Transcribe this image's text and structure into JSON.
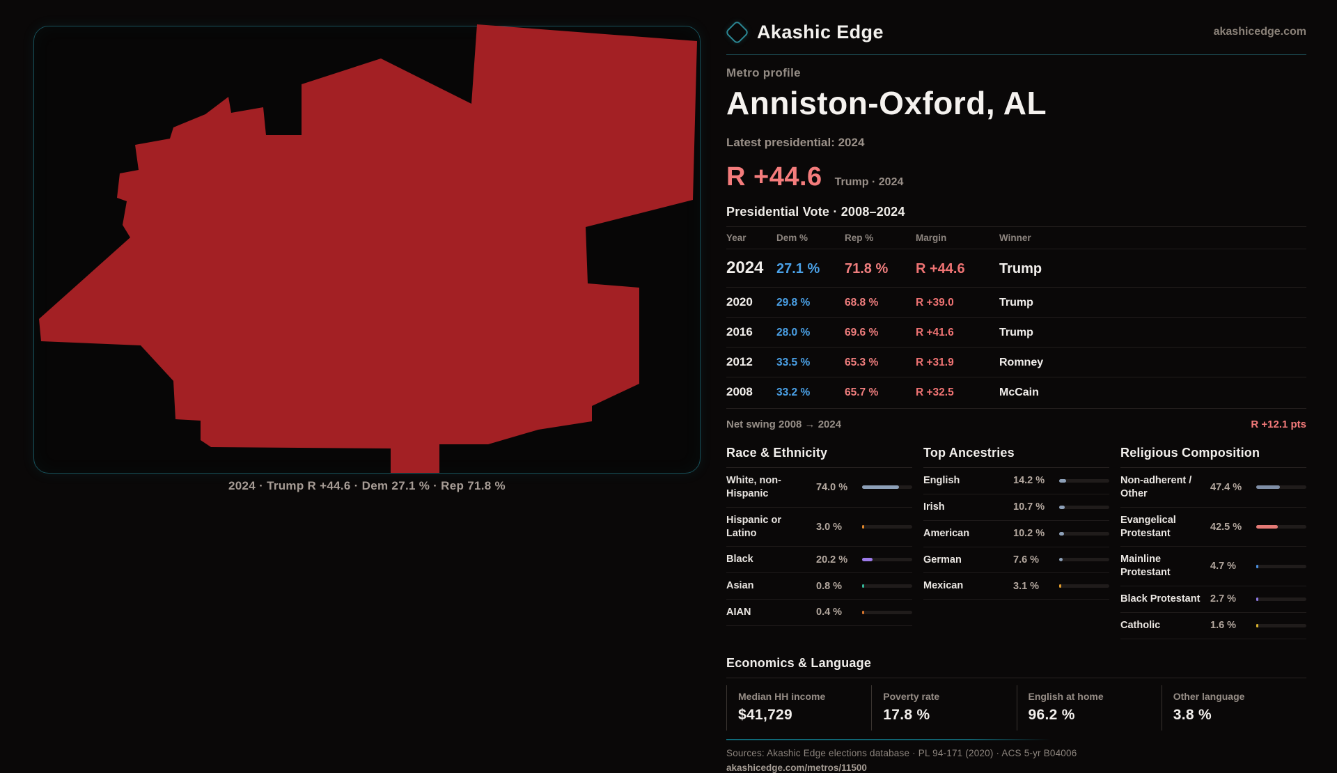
{
  "brand": {
    "name": "Akashic Edge",
    "domain": "akashicedge.com"
  },
  "profile": {
    "kicker": "Metro profile",
    "title": "Anniston-Oxford, AL",
    "latest_label": "Latest presidential: 2024",
    "headline_margin": "R +44.6",
    "headline_detail": "Trump · 2024"
  },
  "map": {
    "caption": "2024 · Trump R +44.6 · Dem 27.1 % · Rep 71.8 %",
    "shape_fill": "#a32024",
    "panel_border": "#17505a"
  },
  "election_table": {
    "title": "Presidential Vote · 2008–2024",
    "columns": [
      "Year",
      "Dem %",
      "Rep %",
      "Margin",
      "Winner"
    ],
    "rows": [
      {
        "year": "2024",
        "dem": "27.1 %",
        "rep": "71.8 %",
        "margin": "R +44.6",
        "winner": "Trump"
      },
      {
        "year": "2020",
        "dem": "29.8 %",
        "rep": "68.8 %",
        "margin": "R +39.0",
        "winner": "Trump"
      },
      {
        "year": "2016",
        "dem": "28.0 %",
        "rep": "69.6 %",
        "margin": "R +41.6",
        "winner": "Trump"
      },
      {
        "year": "2012",
        "dem": "33.5 %",
        "rep": "65.3 %",
        "margin": "R +31.9",
        "winner": "Romney"
      },
      {
        "year": "2008",
        "dem": "33.2 %",
        "rep": "65.7 %",
        "margin": "R +32.5",
        "winner": "McCain"
      }
    ],
    "net_swing_label": "Net swing 2008 → 2024",
    "net_swing_value": "R +12.1 pts"
  },
  "race": {
    "title": "Race & Ethnicity",
    "rows": [
      {
        "label": "White, non-Hispanic",
        "value": "74.0 %",
        "pct": 74.0,
        "color": "#8da0b8"
      },
      {
        "label": "Hispanic or Latino",
        "value": "3.0 %",
        "pct": 3.0,
        "color": "#e0862b"
      },
      {
        "label": "Black",
        "value": "20.2 %",
        "pct": 20.2,
        "color": "#9d7bea"
      },
      {
        "label": "Asian",
        "value": "0.8 %",
        "pct": 0.8,
        "color": "#35b89a"
      },
      {
        "label": "AIAN",
        "value": "0.4 %",
        "pct": 0.4,
        "color": "#d8752c"
      }
    ]
  },
  "ancestries": {
    "title": "Top Ancestries",
    "rows": [
      {
        "label": "English",
        "value": "14.2 %",
        "pct": 14.2,
        "color": "#8da0b8"
      },
      {
        "label": "Irish",
        "value": "10.7 %",
        "pct": 10.7,
        "color": "#8da0b8"
      },
      {
        "label": "American",
        "value": "10.2 %",
        "pct": 10.2,
        "color": "#8da0b8"
      },
      {
        "label": "German",
        "value": "7.6 %",
        "pct": 7.6,
        "color": "#8da0b8"
      },
      {
        "label": "Mexican",
        "value": "3.1 %",
        "pct": 3.1,
        "color": "#e09a2b"
      }
    ]
  },
  "religion": {
    "title": "Religious Composition",
    "rows": [
      {
        "label": "Non-adherent / Other",
        "value": "47.4 %",
        "pct": 47.4,
        "color": "#7f8ea6"
      },
      {
        "label": "Evangelical Protestant",
        "value": "42.5 %",
        "pct": 42.5,
        "color": "#e57a76"
      },
      {
        "label": "Mainline Protestant",
        "value": "4.7 %",
        "pct": 4.7,
        "color": "#4a8fe0"
      },
      {
        "label": "Black Protestant",
        "value": "2.7 %",
        "pct": 2.7,
        "color": "#8f7ae6"
      },
      {
        "label": "Catholic",
        "value": "1.6 %",
        "pct": 1.6,
        "color": "#d9b32e"
      }
    ]
  },
  "economics": {
    "title": "Economics & Language",
    "stats": [
      {
        "label": "Median HH income",
        "value": "$41,729"
      },
      {
        "label": "Poverty rate",
        "value": "17.8 %"
      },
      {
        "label": "English at home",
        "value": "96.2 %"
      },
      {
        "label": "Other language",
        "value": "3.8 %"
      }
    ]
  },
  "footer": {
    "sources": "Sources: Akashic Edge elections database · PL 94-171 (2020) · ACS 5-yr B04006",
    "permalink": "akashicedge.com/metros/11500"
  },
  "colors": {
    "dem_blue": "#4aa0e6",
    "rep_salmon": "#f07e7e",
    "accent_teal": "#2b8794",
    "map_red": "#a32024"
  }
}
